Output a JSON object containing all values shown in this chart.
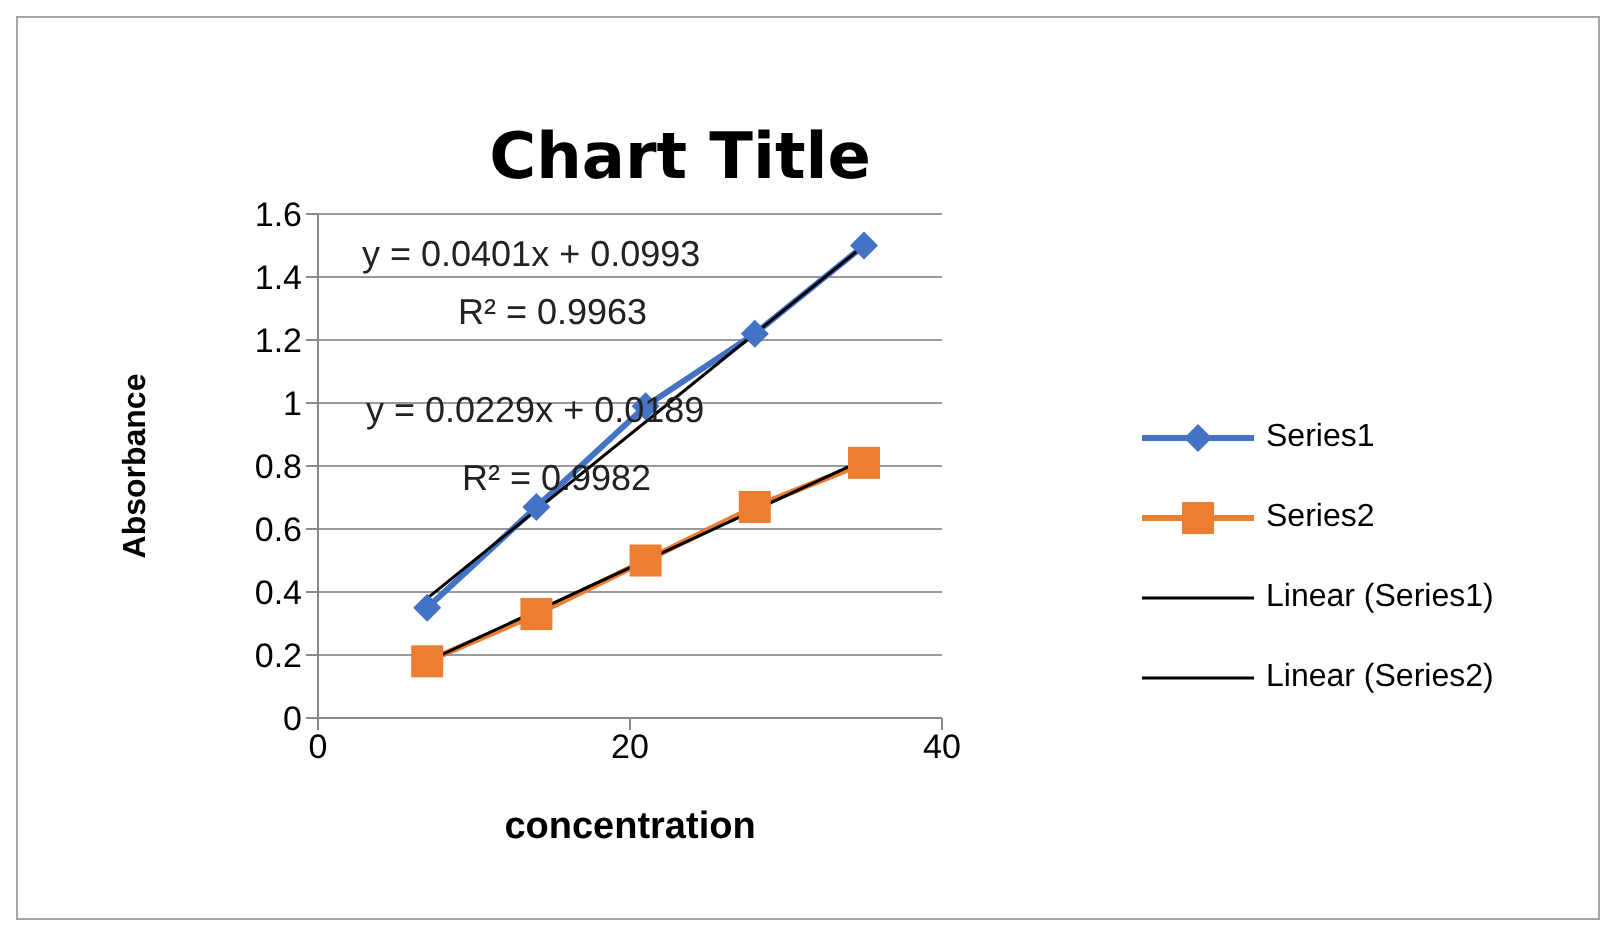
{
  "chart_data": {
    "type": "line",
    "title": "Chart Title",
    "xlabel": "concentration",
    "ylabel": "Absorbance",
    "xlim": [
      0,
      40
    ],
    "xticks": [
      0,
      20,
      40
    ],
    "ylim": [
      0,
      1.6
    ],
    "yticks": [
      0,
      0.2,
      0.4,
      0.6,
      0.8,
      1,
      1.2,
      1.4,
      1.6
    ],
    "grid": "y",
    "legend": "right",
    "series": [
      {
        "name": "Series1",
        "color": "#4472c4",
        "marker": "diamond",
        "x": [
          7,
          14,
          21,
          28,
          35
        ],
        "values": [
          0.35,
          0.67,
          0.99,
          1.22,
          1.5
        ]
      },
      {
        "name": "Series2",
        "color": "#ed7d31",
        "marker": "square",
        "x": [
          7,
          14,
          21,
          28,
          35
        ],
        "values": [
          0.18,
          0.33,
          0.5,
          0.67,
          0.81
        ]
      },
      {
        "name": "Linear (Series1)",
        "color": "#000000",
        "marker": "none",
        "x": [
          7,
          35
        ],
        "values": [
          0.38,
          1.5
        ]
      },
      {
        "name": "Linear (Series2)",
        "color": "#000000",
        "marker": "none",
        "x": [
          7,
          35
        ],
        "values": [
          0.18,
          0.82
        ]
      }
    ],
    "annotations": [
      "y = 0.0401x + 0.0993",
      "R² = 0.9963",
      "y = 0.0229x + 0.0189",
      "R² = 0.9982"
    ]
  }
}
